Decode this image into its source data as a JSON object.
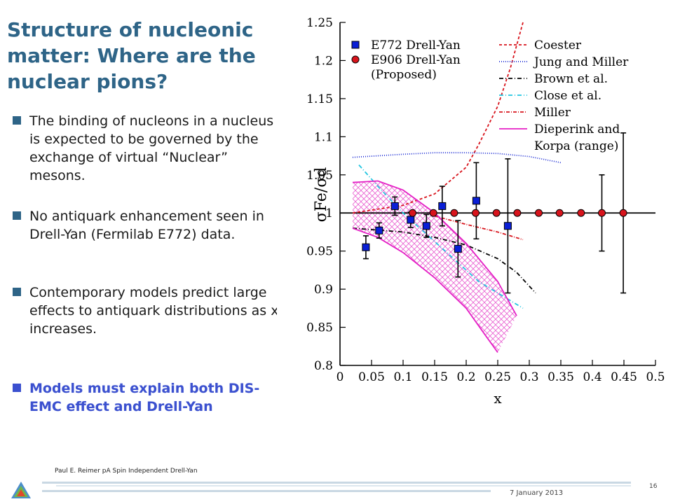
{
  "slide": {
    "title": "Structure of nucleonic matter: Where are the nuclear pions?",
    "bullets": [
      {
        "text": "The binding of nucleons in a nucleus is expected to be governed by the exchange of virtual “Nuclear” mesons.",
        "highlight": false
      },
      {
        "text": "No antiquark enhancement seen in Drell-Yan (Fermilab E772) data.",
        "highlight": false
      },
      {
        "text": "Contemporary models predict large effects to antiquark distributions as x increases.",
        "highlight": false
      },
      {
        "text": "Models must explain both DIS-EMC effect and Drell-Yan",
        "highlight": true
      }
    ],
    "footer": {
      "author_text": "Paul E. Reimer pA Spin Independent Drell-Yan",
      "date": "7 January 2013",
      "page": "16"
    },
    "colors": {
      "title": "#2e6487",
      "highlight": "#3b50cf",
      "accent_band": "#c9d8e3"
    }
  },
  "chart_data": {
    "type": "scatter",
    "xlabel": "x",
    "ylabel": "σFe/σd",
    "xlim": [
      0,
      0.5
    ],
    "ylim": [
      0.8,
      1.25
    ],
    "xticks": [
      "0",
      "0.05",
      "0.1",
      "0.15",
      "0.2",
      "0.25",
      "0.3",
      "0.35",
      "0.4",
      "0.45",
      "0.5"
    ],
    "yticks": [
      "0.8",
      "0.85",
      "0.9",
      "0.95",
      "1",
      "1.05",
      "1.1",
      "1.15",
      "1.2",
      "1.25"
    ],
    "reference_line": 1.0,
    "series": [
      {
        "name": "E772 Drell-Yan",
        "marker": "square",
        "color": "#0a1fd6",
        "points": [
          {
            "x": 0.041,
            "y": 0.955,
            "err": 0.015
          },
          {
            "x": 0.062,
            "y": 0.977,
            "err": 0.01
          },
          {
            "x": 0.087,
            "y": 1.009,
            "err": 0.012
          },
          {
            "x": 0.112,
            "y": 0.991,
            "err": 0.01
          },
          {
            "x": 0.137,
            "y": 0.983,
            "err": 0.015
          },
          {
            "x": 0.162,
            "y": 1.009,
            "err": 0.026
          },
          {
            "x": 0.187,
            "y": 0.953,
            "err": 0.037
          },
          {
            "x": 0.216,
            "y": 1.016,
            "err": 0.05
          },
          {
            "x": 0.266,
            "y": 0.983,
            "err": 0.088
          }
        ]
      },
      {
        "name": "E906 Drell-Yan (Proposed)",
        "marker": "circle",
        "color": "#d8141c",
        "points": [
          {
            "x": 0.115,
            "y": 1.0,
            "err": 0.0
          },
          {
            "x": 0.148,
            "y": 1.0,
            "err": 0.0
          },
          {
            "x": 0.181,
            "y": 1.0,
            "err": 0.0
          },
          {
            "x": 0.215,
            "y": 1.0,
            "err": 0.0
          },
          {
            "x": 0.248,
            "y": 1.0,
            "err": 0.0
          },
          {
            "x": 0.281,
            "y": 1.0,
            "err": 0.0
          },
          {
            "x": 0.315,
            "y": 1.0,
            "err": 0.0
          },
          {
            "x": 0.348,
            "y": 1.0,
            "err": 0.0
          },
          {
            "x": 0.382,
            "y": 1.0,
            "err": 0.0
          },
          {
            "x": 0.415,
            "y": 1.0,
            "err": 0.05
          },
          {
            "x": 0.449,
            "y": 1.0,
            "err": 0.105
          }
        ]
      }
    ],
    "curves": [
      {
        "name": "Coester",
        "color": "#d8141c",
        "dash": "4,3",
        "x": [
          0.02,
          0.1,
          0.15,
          0.2,
          0.22,
          0.25,
          0.27,
          0.29
        ],
        "y": [
          1.0,
          1.01,
          1.025,
          1.06,
          1.09,
          1.14,
          1.19,
          1.25
        ]
      },
      {
        "name": "Jung and Miller",
        "color": "#1b2bd4",
        "dash": "1,2",
        "x": [
          0.02,
          0.1,
          0.15,
          0.2,
          0.25,
          0.3,
          0.35
        ],
        "y": [
          1.073,
          1.077,
          1.079,
          1.079,
          1.078,
          1.074,
          1.066
        ]
      },
      {
        "name": "Brown et al.",
        "color": "#000000",
        "dash": "6,3,1,3",
        "x": [
          0.02,
          0.1,
          0.15,
          0.2,
          0.25,
          0.28,
          0.31
        ],
        "y": [
          0.98,
          0.975,
          0.968,
          0.958,
          0.94,
          0.922,
          0.895
        ]
      },
      {
        "name": "Close et al.",
        "color": "#22c5e0",
        "dash": "6,3,1,3",
        "x": [
          0.03,
          0.06,
          0.1,
          0.14,
          0.18,
          0.22,
          0.26,
          0.29
        ],
        "y": [
          1.063,
          1.035,
          1.0,
          0.97,
          0.94,
          0.91,
          0.89,
          0.875
        ]
      },
      {
        "name": "Miller",
        "color": "#d8141c",
        "dash": "5,2,1,2",
        "x": [
          0.15,
          0.2,
          0.25,
          0.29
        ],
        "y": [
          0.996,
          0.985,
          0.975,
          0.965
        ]
      },
      {
        "name": "Dieperink and Korpa (range) upper",
        "color": "#e41fc5",
        "dash": "",
        "x": [
          0.02,
          0.06,
          0.1,
          0.15,
          0.2,
          0.25,
          0.28
        ],
        "y": [
          1.04,
          1.042,
          1.03,
          1.0,
          0.96,
          0.91,
          0.865
        ]
      },
      {
        "name": "Dieperink and Korpa (range) lower",
        "color": "#e41fc5",
        "dash": "",
        "x": [
          0.02,
          0.06,
          0.1,
          0.15,
          0.2,
          0.23,
          0.25
        ],
        "y": [
          0.98,
          0.968,
          0.948,
          0.915,
          0.875,
          0.84,
          0.817
        ]
      }
    ],
    "legend": [
      {
        "label": "E772 Drell-Yan",
        "kind": "square",
        "color": "#0a1fd6"
      },
      {
        "label": "E906 Drell-Yan",
        "kind": "circle",
        "color": "#d8141c"
      },
      {
        "label": "(Proposed)",
        "kind": "none",
        "color": "#000000"
      },
      {
        "label": "Coester",
        "kind": "line",
        "color": "#d8141c",
        "dash": "4,3"
      },
      {
        "label": "Jung and Miller",
        "kind": "line",
        "color": "#1b2bd4",
        "dash": "1,2"
      },
      {
        "label": "Brown et al.",
        "kind": "line",
        "color": "#000000",
        "dash": "6,3,1,3"
      },
      {
        "label": "Close et al.",
        "kind": "line",
        "color": "#22c5e0",
        "dash": "6,3,1,3"
      },
      {
        "label": "Miller",
        "kind": "line",
        "color": "#d8141c",
        "dash": "5,2,1,2"
      },
      {
        "label": "Dieperink and",
        "kind": "line",
        "color": "#e41fc5",
        "dash": ""
      },
      {
        "label": "Korpa (range)",
        "kind": "none",
        "color": "#000000"
      }
    ]
  }
}
